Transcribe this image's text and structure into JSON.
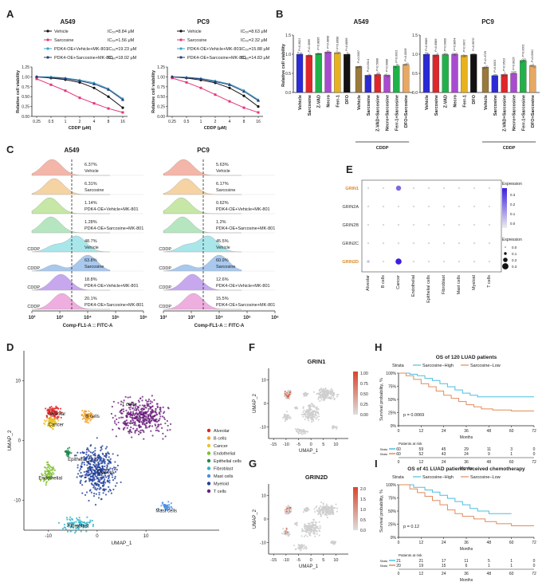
{
  "panel_letters": [
    "A",
    "B",
    "C",
    "D",
    "E",
    "F",
    "G",
    "H",
    "I"
  ],
  "colors": {
    "vehicle": "#111111",
    "sarcosine": "#e4357a",
    "vehicle_mk": "#3aa5c8",
    "sarcosine_mk": "#2a3f7a",
    "blue": "#2b2bd6",
    "red": "#e0262a",
    "green": "#21b14a",
    "violet": "#a84bd0",
    "yellow": "#e8b21e",
    "black": "#111111",
    "brown": "#9a7a3a",
    "orange": "#e7a864",
    "surv_high": "#4bbfe0",
    "surv_low": "#e28b5b"
  },
  "chart_data": [
    {
      "id": "A-A549",
      "type": "line",
      "title": "A549",
      "xlabel": "CDDP (μM)",
      "ylabel": "Relative cell viability",
      "categories": [
        "0.25",
        "0.5",
        "1",
        "2",
        "4",
        "8",
        "16"
      ],
      "ylim": [
        0,
        1.25
      ],
      "yticks": [
        "0.00",
        "0.25",
        "0.50",
        "0.75",
        "1.00",
        "1.25"
      ],
      "series": [
        {
          "name": "Vehicle",
          "ic50": "IC₅₀=8.84 μM",
          "values": [
            1.0,
            0.97,
            0.93,
            0.86,
            0.72,
            0.5,
            0.22
          ]
        },
        {
          "name": "Sarcosine",
          "ic50": "IC₅₀=1.56 μM",
          "values": [
            0.95,
            0.8,
            0.65,
            0.47,
            0.33,
            0.2,
            0.1
          ]
        },
        {
          "name": "PDK4-OE+Vehicle+MK-801",
          "ic50": "IC₅₀=19.23 μM",
          "values": [
            1.0,
            1.0,
            0.97,
            0.92,
            0.85,
            0.7,
            0.45
          ]
        },
        {
          "name": "PDK4-OE+Sarcosine+MK-801",
          "ic50": "IC₅₀=18.02 μM",
          "values": [
            1.0,
            0.98,
            0.96,
            0.9,
            0.82,
            0.68,
            0.42
          ]
        }
      ]
    },
    {
      "id": "A-PC9",
      "type": "line",
      "title": "PC9",
      "xlabel": "CDDP (μM)",
      "ylabel": "Relative cell viability",
      "categories": [
        "0.25",
        "0.5",
        "1",
        "2",
        "4",
        "8",
        "16"
      ],
      "ylim": [
        0,
        1.25
      ],
      "yticks": [
        "0.00",
        "0.25",
        "0.50",
        "0.75",
        "1.00",
        "1.25"
      ],
      "series": [
        {
          "name": "Vehicle",
          "ic50": "IC₅₀=8.63 μM",
          "values": [
            1.0,
            0.97,
            0.92,
            0.85,
            0.72,
            0.52,
            0.25
          ]
        },
        {
          "name": "Sarcosine",
          "ic50": "IC₅₀=2.32 μM",
          "values": [
            0.97,
            0.86,
            0.72,
            0.55,
            0.38,
            0.22,
            0.1
          ]
        },
        {
          "name": "PDK4-OE+Vehicle+MK-801",
          "ic50": "IC₅₀=15.88 μM",
          "values": [
            1.0,
            0.99,
            0.96,
            0.9,
            0.82,
            0.66,
            0.42
          ]
        },
        {
          "name": "PDK4-OE+Sarcosine+MK-801",
          "ic50": "IC₅₀=14.83 μM",
          "values": [
            1.0,
            0.98,
            0.95,
            0.88,
            0.8,
            0.63,
            0.4
          ]
        }
      ]
    },
    {
      "id": "B-A549",
      "type": "bar",
      "title": "A549",
      "ylabel": "Relative cell viability",
      "ylim": [
        0,
        1.5
      ],
      "yticks": [
        "0.0",
        "0.5",
        "1.0",
        "1.5"
      ],
      "group_label": "CDDP",
      "categories": [
        "Vehicle",
        "Sarcosine",
        "Z-VAD",
        "Necro",
        "Ferr-1",
        "DFO",
        "Vehicle",
        "Sarcosine",
        "Z-VAD+Sarcosine",
        "Necro+Sarcosine",
        "Ferr-1+Sarcosine",
        "DFO+Sarcosine"
      ],
      "values": [
        1.0,
        0.97,
        1.02,
        1.06,
        1.04,
        1.0,
        0.68,
        0.45,
        0.47,
        0.45,
        0.69,
        0.73
      ],
      "pvalues": [
        "P=0.3921",
        "P=0.3895",
        "P=0.9895",
        "P=0.9898",
        "P=0.8998",
        "P=0.8899",
        "P=0.0007",
        "P=0.0314",
        "P=0.5999",
        "P=0.9988",
        "P=0.0001",
        "P=0.0009"
      ],
      "bar_colors": [
        "#2b2bd6",
        "#e0262a",
        "#21b14a",
        "#a84bd0",
        "#e8b21e",
        "#111111",
        "#9a7a3a",
        "#2b2bd6",
        "#e0262a",
        "#a84bd0",
        "#21b14a",
        "#e7a864"
      ]
    },
    {
      "id": "B-PC9",
      "type": "bar",
      "title": "PC9",
      "ylabel": "Relative cell viability",
      "ylim": [
        0,
        1.5
      ],
      "yticks": [
        "0.0",
        "0.5",
        "1.0",
        "1.5"
      ],
      "group_label": "CDDP",
      "categories": [
        "Vehicle",
        "Sarcosine",
        "Z-VAD",
        "Necro",
        "Ferr-1",
        "DFO",
        "Vehicle",
        "Sarcosine",
        "Z-VAD+Sarcosine",
        "Necro+Sarcosine",
        "Ferr-1+Sarcosine",
        "DFO+Sarcosine"
      ],
      "values": [
        1.0,
        0.98,
        0.99,
        1.0,
        0.97,
        1.0,
        0.66,
        0.44,
        0.47,
        0.5,
        0.84,
        0.7
      ],
      "pvalues": [
        "P=0.9989",
        "P=0.9989",
        "P=0.9989",
        "P=0.9854",
        "P=0.9971",
        "P=0.5970",
        "P=0.4725",
        "P=0.0001",
        "P=0.9523",
        "P=0.9025",
        "P=0.0001",
        "P=0.0001"
      ],
      "bar_colors": [
        "#2b2bd6",
        "#e0262a",
        "#21b14a",
        "#a84bd0",
        "#e8b21e",
        "#111111",
        "#9a7a3a",
        "#2b2bd6",
        "#e0262a",
        "#a84bd0",
        "#21b14a",
        "#e7a864"
      ]
    },
    {
      "id": "C-A549",
      "type": "area",
      "title": "A549",
      "xlabel": "Comp-FL1-A :: FITC-A",
      "xticks": [
        "10²",
        "10³",
        "10⁴",
        "10⁵",
        "10⁶"
      ],
      "tracks": [
        {
          "label": "Vehicle",
          "pct": "6.37%",
          "cddp": "",
          "color": "#f4b6a8",
          "center": 0.18
        },
        {
          "label": "Sarcosine",
          "pct": "6.31%",
          "cddp": "",
          "color": "#f5d3a3",
          "center": 0.2
        },
        {
          "label": "PDK4-OE+Vehicle+MK-801",
          "pct": "1.14%",
          "cddp": "",
          "color": "#c6e7a6",
          "center": 0.16
        },
        {
          "label": "PDK4-OE+Sarcosine+MK-801",
          "pct": "1.28%",
          "cddp": "",
          "color": "#b6e6c0",
          "center": 0.17
        },
        {
          "label": "Vehicle",
          "pct": "48.7%",
          "cddp": "CDDP",
          "color": "#a8e6ea",
          "center": 0.4
        },
        {
          "label": "Sarcosine",
          "pct": "63.8%",
          "cddp": "CDDP",
          "color": "#a9c8ee",
          "center": 0.5
        },
        {
          "label": "PDK4-OE+Vehicle+MK-801",
          "pct": "18.8%",
          "cddp": "CDDP",
          "color": "#c7a8ee",
          "center": 0.26
        },
        {
          "label": "PDK4-OE+Sarcosine+MK-801",
          "pct": "20.1%",
          "cddp": "CDDP",
          "color": "#eeaee0",
          "center": 0.27
        }
      ]
    },
    {
      "id": "C-PC9",
      "type": "area",
      "title": "PC9",
      "xlabel": "Comp-FL1-A :: FITC-A",
      "xticks": [
        "10²",
        "10³",
        "10⁴",
        "10⁵",
        "10⁶"
      ],
      "tracks": [
        {
          "label": "Vehicle",
          "pct": "5.63%",
          "cddp": "",
          "color": "#f4b6a8",
          "center": 0.18
        },
        {
          "label": "Sarcosine",
          "pct": "6.17%",
          "cddp": "",
          "color": "#f5d3a3",
          "center": 0.2
        },
        {
          "label": "PDK4-OE+Vehicle+MK-801",
          "pct": "0.62%",
          "cddp": "",
          "color": "#c6e7a6",
          "center": 0.16
        },
        {
          "label": "PDK4-OE+Sarcosine+MK-801",
          "pct": "1.2%",
          "cddp": "",
          "color": "#b6e6c0",
          "center": 0.17
        },
        {
          "label": "Vehicle",
          "pct": "45.5%",
          "cddp": "CDDP",
          "color": "#a8e6ea",
          "center": 0.4
        },
        {
          "label": "Sarcosine",
          "pct": "60.9%",
          "cddp": "CDDP",
          "color": "#a9c8ee",
          "center": 0.5
        },
        {
          "label": "PDK4-OE+Vehicle+MK-801",
          "pct": "12.6%",
          "cddp": "CDDP",
          "color": "#c7a8ee",
          "center": 0.26
        },
        {
          "label": "PDK4-OE+Sarcosine+MK-801",
          "pct": "15.5%",
          "cddp": "CDDP",
          "color": "#eeaee0",
          "center": 0.27
        }
      ]
    },
    {
      "id": "D",
      "type": "scatter",
      "xlabel": "UMAP_1",
      "ylabel": "UMAP_2",
      "xticks": [
        "-10",
        "0",
        "10"
      ],
      "yticks": [
        "-10",
        "0",
        "10"
      ],
      "clusters": [
        {
          "name": "Alveolar",
          "color": "#e02020"
        },
        {
          "name": "B cells",
          "color": "#f2a126"
        },
        {
          "name": "Cancer",
          "color": "#e6c62a"
        },
        {
          "name": "Endothelial",
          "color": "#7dbf2d"
        },
        {
          "name": "Epithelial cells",
          "color": "#1b8a4a"
        },
        {
          "name": "Fibroblast",
          "color": "#2bb3c8"
        },
        {
          "name": "Mast cells",
          "color": "#4a8de0"
        },
        {
          "name": "Myeloid",
          "color": "#1f3f9a"
        },
        {
          "name": "T cells",
          "color": "#6a1f7a"
        }
      ]
    },
    {
      "id": "E",
      "type": "scatter",
      "title": "dotplot",
      "genes": [
        "GRIN1",
        "GRIN2A",
        "GRIN2B",
        "GRIN2C",
        "GRIN2D"
      ],
      "gene_colors": [
        "#d98a2a",
        "#333333",
        "#333333",
        "#333333",
        "#d98a2a"
      ],
      "cell_types": [
        "Alveolar",
        "B cells",
        "Cancer",
        "Endothelial",
        "Epithelial cells",
        "Fibroblast",
        "Mast cells",
        "Myeloid",
        "T cells"
      ],
      "expression_legend_title": "Expression",
      "expression_ticks": [
        "0.3",
        "0.2",
        "0.1",
        "0.0"
      ],
      "size_legend_title": "Expression",
      "size_ticks": [
        "0.0",
        "0.1",
        "0.2",
        "0.3"
      ],
      "cancer_grin1": 0.22,
      "cancer_grin2d": 0.33
    },
    {
      "id": "F",
      "type": "scatter",
      "title": "GRIN1",
      "xlabel": "UMAP_1",
      "ylabel": "UMAP_2",
      "xticks": [
        "-15",
        "-10",
        "-5",
        "0",
        "5",
        "10"
      ],
      "yticks": [
        "-10",
        "0",
        "10"
      ],
      "legend_ticks": [
        "1.00",
        "0.75",
        "0.50",
        "0.25",
        "0.00"
      ]
    },
    {
      "id": "G",
      "type": "scatter",
      "title": "GRIN2D",
      "xlabel": "UMAP_1",
      "ylabel": "UMAP_2",
      "xticks": [
        "-15",
        "-10",
        "-5",
        "0",
        "5",
        "10"
      ],
      "yticks": [
        "-10",
        "0",
        "10"
      ],
      "legend_ticks": [
        "2.0",
        "1.5",
        "1.0",
        "0.5",
        "0.0"
      ]
    },
    {
      "id": "H",
      "type": "line",
      "title": "OS of 120 LUAD patients",
      "xlabel": "Months",
      "ylabel": "Survival probability, %",
      "strata_label": "Strata",
      "series_names": [
        "Sarcosine−High",
        "Sarcosine−Low"
      ],
      "pvalue": "p = 0.0069",
      "xticks": [
        "0",
        "12",
        "24",
        "36",
        "48",
        "60",
        "72"
      ],
      "yticks": [
        "0%",
        "25%",
        "50%",
        "75%",
        "100%"
      ],
      "risk_title": "Patients at risk",
      "risk": [
        [
          "60",
          "59",
          "45",
          "29",
          "11",
          "3",
          "0"
        ],
        [
          "60",
          "52",
          "43",
          "24",
          "9",
          "1",
          "0"
        ]
      ],
      "series": [
        {
          "name": "Sarcosine−High",
          "x": [
            0,
            6,
            10,
            14,
            18,
            22,
            26,
            30,
            34,
            38,
            42,
            48,
            60,
            72
          ],
          "values": [
            100,
            98,
            95,
            90,
            86,
            80,
            74,
            68,
            62,
            58,
            55,
            55,
            55,
            55
          ]
        },
        {
          "name": "Sarcosine−Low",
          "x": [
            0,
            4,
            8,
            12,
            16,
            20,
            24,
            28,
            32,
            36,
            40,
            44,
            50,
            60,
            72
          ],
          "values": [
            100,
            95,
            88,
            80,
            74,
            66,
            58,
            52,
            46,
            40,
            36,
            32,
            30,
            28,
            28
          ]
        }
      ]
    },
    {
      "id": "I",
      "type": "line",
      "title": "OS of 41 LUAD patients received chemotherapy",
      "xlabel": "Months",
      "ylabel": "Survival probability, %",
      "strata_label": "Strata",
      "series_names": [
        "Sarcosine−High",
        "Sarcosine−Low"
      ],
      "pvalue": "p = 0.12",
      "xticks": [
        "0",
        "12",
        "24",
        "36",
        "48",
        "60",
        "72"
      ],
      "yticks": [
        "0%",
        "25%",
        "50%",
        "75%",
        "100%"
      ],
      "risk_title": "Patients at risk",
      "risk": [
        [
          "21",
          "21",
          "17",
          "11",
          "5",
          "1",
          "0"
        ],
        [
          "20",
          "19",
          "15",
          "6",
          "1",
          "1",
          "0"
        ]
      ],
      "series": [
        {
          "name": "Sarcosine−High",
          "x": [
            0,
            8,
            14,
            18,
            22,
            26,
            30,
            34,
            38,
            42,
            48,
            60
          ],
          "values": [
            100,
            95,
            90,
            86,
            80,
            74,
            68,
            62,
            55,
            50,
            45,
            45
          ]
        },
        {
          "name": "Sarcosine−Low",
          "x": [
            0,
            6,
            10,
            14,
            18,
            22,
            26,
            30,
            34,
            40,
            46,
            52,
            60,
            72
          ],
          "values": [
            100,
            92,
            85,
            78,
            70,
            62,
            52,
            45,
            40,
            35,
            30,
            26,
            22,
            22
          ]
        }
      ]
    }
  ]
}
